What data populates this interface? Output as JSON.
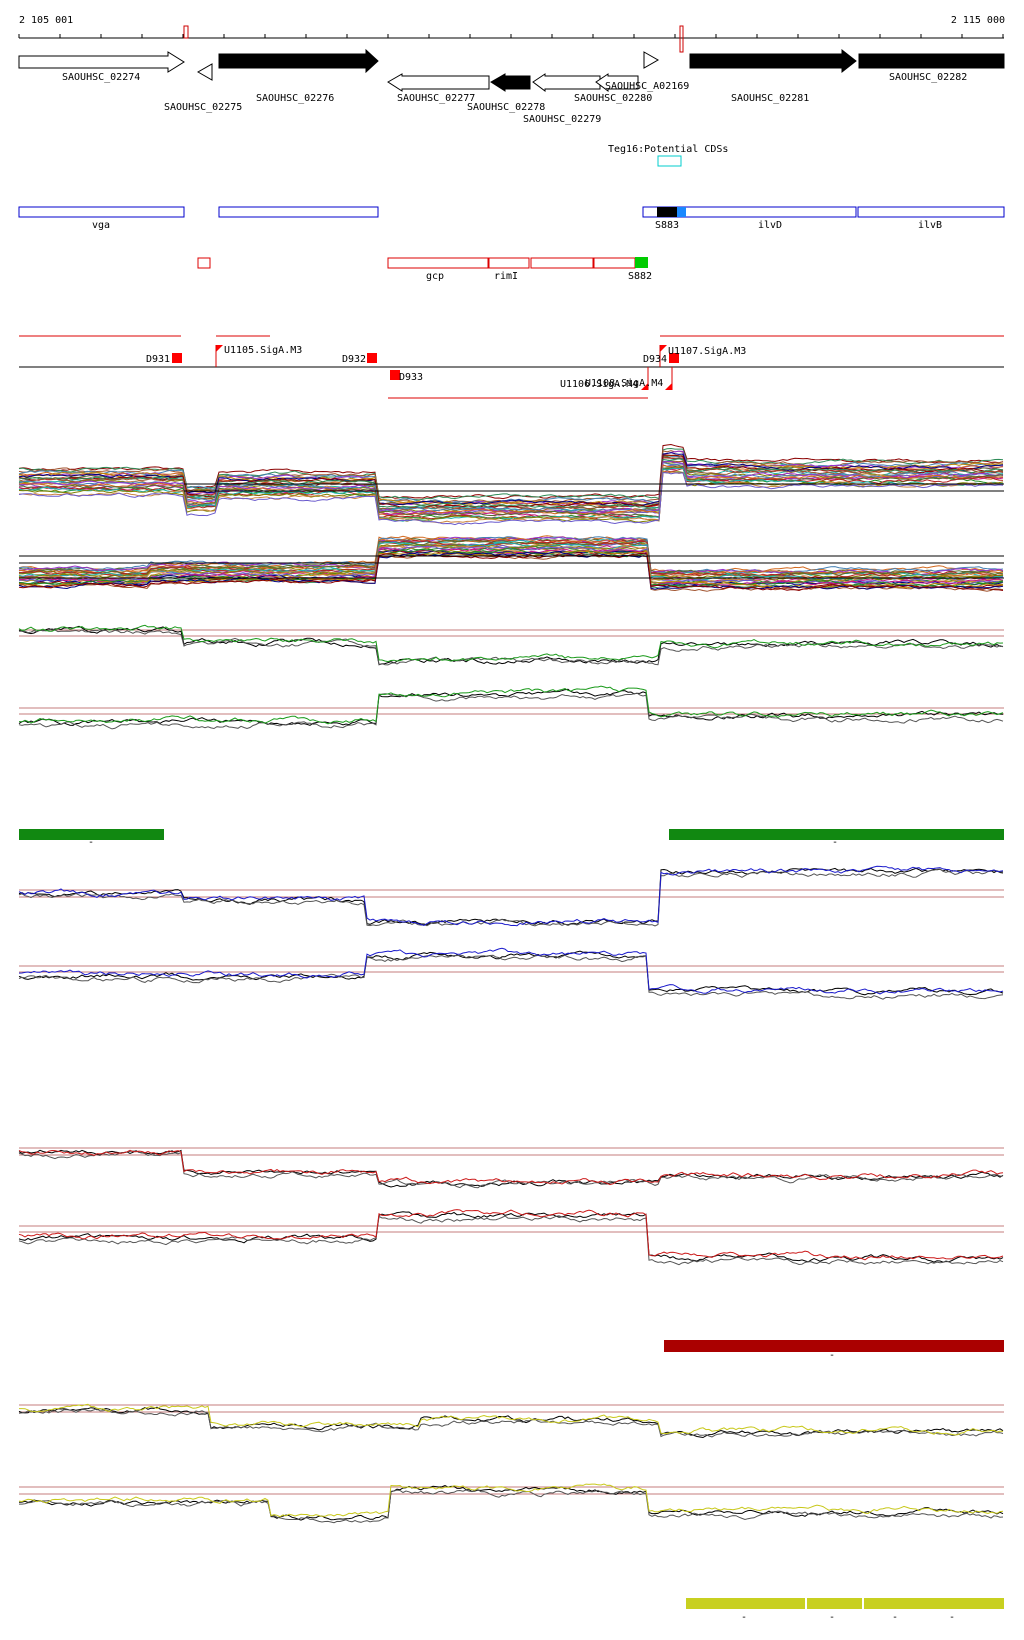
{
  "ruler": {
    "start_label": "2 105 001",
    "end_label": "2 115 000"
  },
  "genes": [
    {
      "label": "SAOUHSC_02274",
      "strand": "+",
      "style": "open"
    },
    {
      "label": "SAOUHSC_02275",
      "strand": "-",
      "style": "open"
    },
    {
      "label": "SAOUHSC_02276",
      "strand": "+",
      "style": "filled"
    },
    {
      "label": "SAOUHSC_02277",
      "strand": "-",
      "style": "open"
    },
    {
      "label": "SAOUHSC_02278",
      "strand": "-",
      "style": "filled"
    },
    {
      "label": "SAOUHSC_02279",
      "strand": "-",
      "style": "open"
    },
    {
      "label": "SAOUHSC_02280",
      "strand": "-",
      "style": "open"
    },
    {
      "label": "SAOUHSC_A02169",
      "strand": "+",
      "style": "open"
    },
    {
      "label": "SAOUHSC_02281",
      "strand": "+",
      "style": "filled"
    },
    {
      "label": "SAOUHSC_02282",
      "strand": "+",
      "style": "filled"
    }
  ],
  "potential_cds": {
    "label": "Teg16:Potential CDSs"
  },
  "operon_labels": {
    "vga": "vga",
    "s883": "S883",
    "ilvd": "ilvD",
    "ilvb": "ilvB"
  },
  "operon_labels_red": {
    "gcp": "gcp",
    "rimi": "rimI",
    "s882": "S882"
  },
  "tss_labels": {
    "d931": "D931",
    "u1105": "U1105.SigA.M3",
    "d932": "D932",
    "d933": "D933",
    "u1106": "U1106.SigA.M4",
    "u1108": "U1108.SigA.M4",
    "d934": "D934",
    "u1107": "U1107.SigA.M3"
  },
  "band_marks": {
    "mark": "-"
  },
  "colors": {
    "gene_filled": "#000000",
    "operon_blue": "#0000cc",
    "operon_red": "#dd0000",
    "green_track": "#1a9a1a",
    "blue_track": "#1a1acc",
    "red_track": "#cc1a1a",
    "yellow_track": "#c8c81a",
    "green_band": "#118811",
    "red_band": "#aa0000",
    "yellow_band": "#c8d020",
    "cyan_box": "#00cccc",
    "green_box": "#00cc00"
  }
}
